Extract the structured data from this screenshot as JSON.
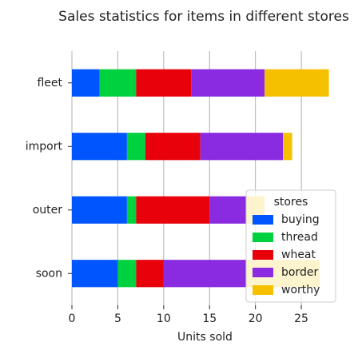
{
  "chart_data": {
    "type": "stacked-barh",
    "title": "Sales statistics for items in different stores",
    "xlabel": "Units sold",
    "legend_title": "stores",
    "legend": "lower right",
    "grid": true,
    "categories": [
      "soon",
      "outer",
      "import",
      "fleet"
    ],
    "series": [
      {
        "name": "buying",
        "color": "#0055ff",
        "values": [
          5,
          6,
          6,
          3
        ]
      },
      {
        "name": "thread",
        "color": "#00d13f",
        "values": [
          2,
          1,
          2,
          4
        ]
      },
      {
        "name": "wheat",
        "color": "#e8000b",
        "values": [
          3,
          8,
          6,
          6
        ]
      },
      {
        "name": "border",
        "color": "#8a2be2",
        "values": [
          9,
          4,
          9,
          8
        ]
      },
      {
        "name": "worthy",
        "color": "#f5c000",
        "values": [
          8,
          2,
          1,
          7
        ]
      }
    ],
    "xlim": [
      0,
      29
    ],
    "xticks": [
      0,
      5,
      10,
      15,
      20,
      25
    ]
  }
}
